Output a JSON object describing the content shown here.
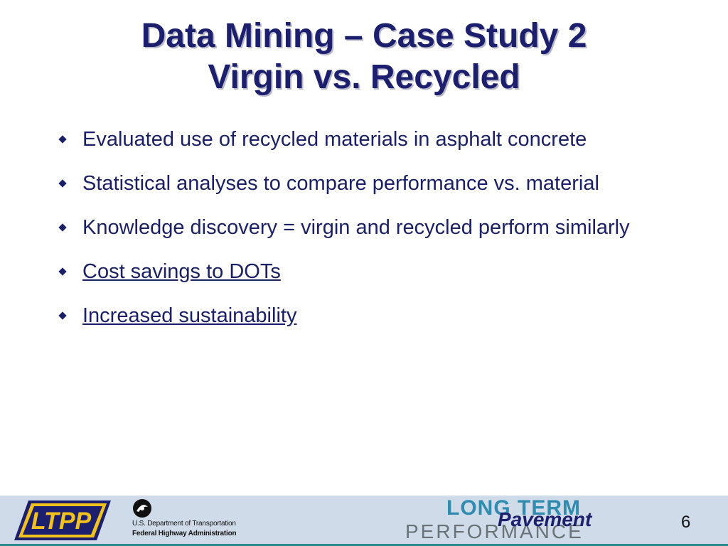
{
  "slide": {
    "title_line1": "Data Mining – Case Study 2",
    "title_line2": "Virgin vs. Recycled",
    "bullets": [
      {
        "text": "Evaluated use of recycled materials in asphalt concrete",
        "link": false
      },
      {
        "text": "Statistical analyses to compare performance vs. material",
        "link": false
      },
      {
        "text": "Knowledge discovery = virgin and recycled perform similarly",
        "link": false
      },
      {
        "text": "Cost savings to DOTs",
        "link": true
      },
      {
        "text": "Increased sustainability",
        "link": true
      }
    ]
  },
  "footer": {
    "ltpp_logo_text": "LTPP",
    "dot_line1": "U.S. Department of Transportation",
    "dot_line2": "Federal Highway Administration",
    "long_term": "LONG TERM",
    "pavement": "Pavement",
    "performance": "PERFORMANCE",
    "page_number": "6"
  },
  "colors": {
    "title": "#1b1f6e",
    "body_text": "#1a1f66",
    "footer_bg": "#cfdbe8",
    "accent_teal": "#2d8a8a"
  }
}
